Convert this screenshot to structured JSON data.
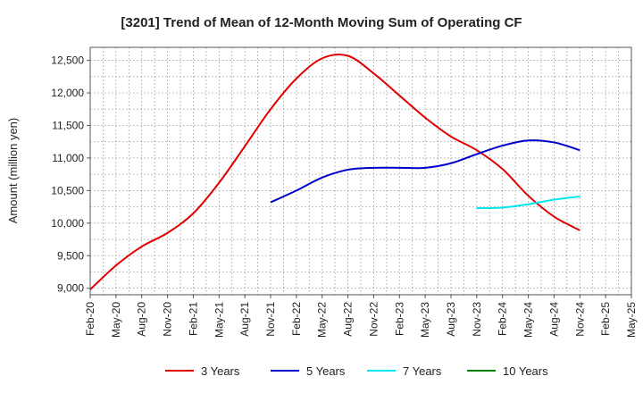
{
  "chart_data": {
    "type": "line",
    "title": "[3201]  Trend of Mean of 12-Month Moving Sum of Operating CF",
    "xlabel": "",
    "ylabel": "Amount (million yen)",
    "categories": [
      "Feb-20",
      "May-20",
      "Aug-20",
      "Nov-20",
      "Feb-21",
      "May-21",
      "Aug-21",
      "Nov-21",
      "Feb-22",
      "May-22",
      "Aug-22",
      "Nov-22",
      "Feb-23",
      "May-23",
      "Aug-23",
      "Nov-23",
      "Feb-24",
      "May-24",
      "Aug-24",
      "Nov-24",
      "Feb-25",
      "May-25"
    ],
    "ylim": [
      8900,
      12700
    ],
    "yticks": [
      9000,
      9500,
      10000,
      10500,
      11000,
      11500,
      12000,
      12500
    ],
    "ytick_labels": [
      "9,000",
      "9,500",
      "10,000",
      "10,500",
      "11,000",
      "11,500",
      "12,000",
      "12,500"
    ],
    "series": [
      {
        "name": "3 Years",
        "color": "#e00000",
        "values": [
          8980,
          9350,
          9640,
          9850,
          10150,
          10620,
          11180,
          11750,
          12220,
          12530,
          12570,
          12300,
          11960,
          11620,
          11330,
          11120,
          10830,
          10420,
          10100,
          9890,
          null,
          null
        ]
      },
      {
        "name": "5 Years",
        "color": "#0000cc",
        "values": [
          null,
          null,
          null,
          null,
          null,
          null,
          null,
          10320,
          10500,
          10700,
          10820,
          10850,
          10850,
          10850,
          10920,
          11060,
          11190,
          11270,
          11240,
          11120,
          null,
          null
        ]
      },
      {
        "name": "7 Years",
        "color": "#00e5ee",
        "values": [
          null,
          null,
          null,
          null,
          null,
          null,
          null,
          null,
          null,
          null,
          null,
          null,
          null,
          null,
          null,
          10230,
          10240,
          10290,
          10360,
          10410,
          null,
          null
        ]
      },
      {
        "name": "10 Years",
        "color": "#008000",
        "values": [
          null,
          null,
          null,
          null,
          null,
          null,
          null,
          null,
          null,
          null,
          null,
          null,
          null,
          null,
          null,
          null,
          null,
          null,
          null,
          null,
          null,
          null
        ]
      }
    ],
    "legend": "bottom",
    "grid": true
  }
}
